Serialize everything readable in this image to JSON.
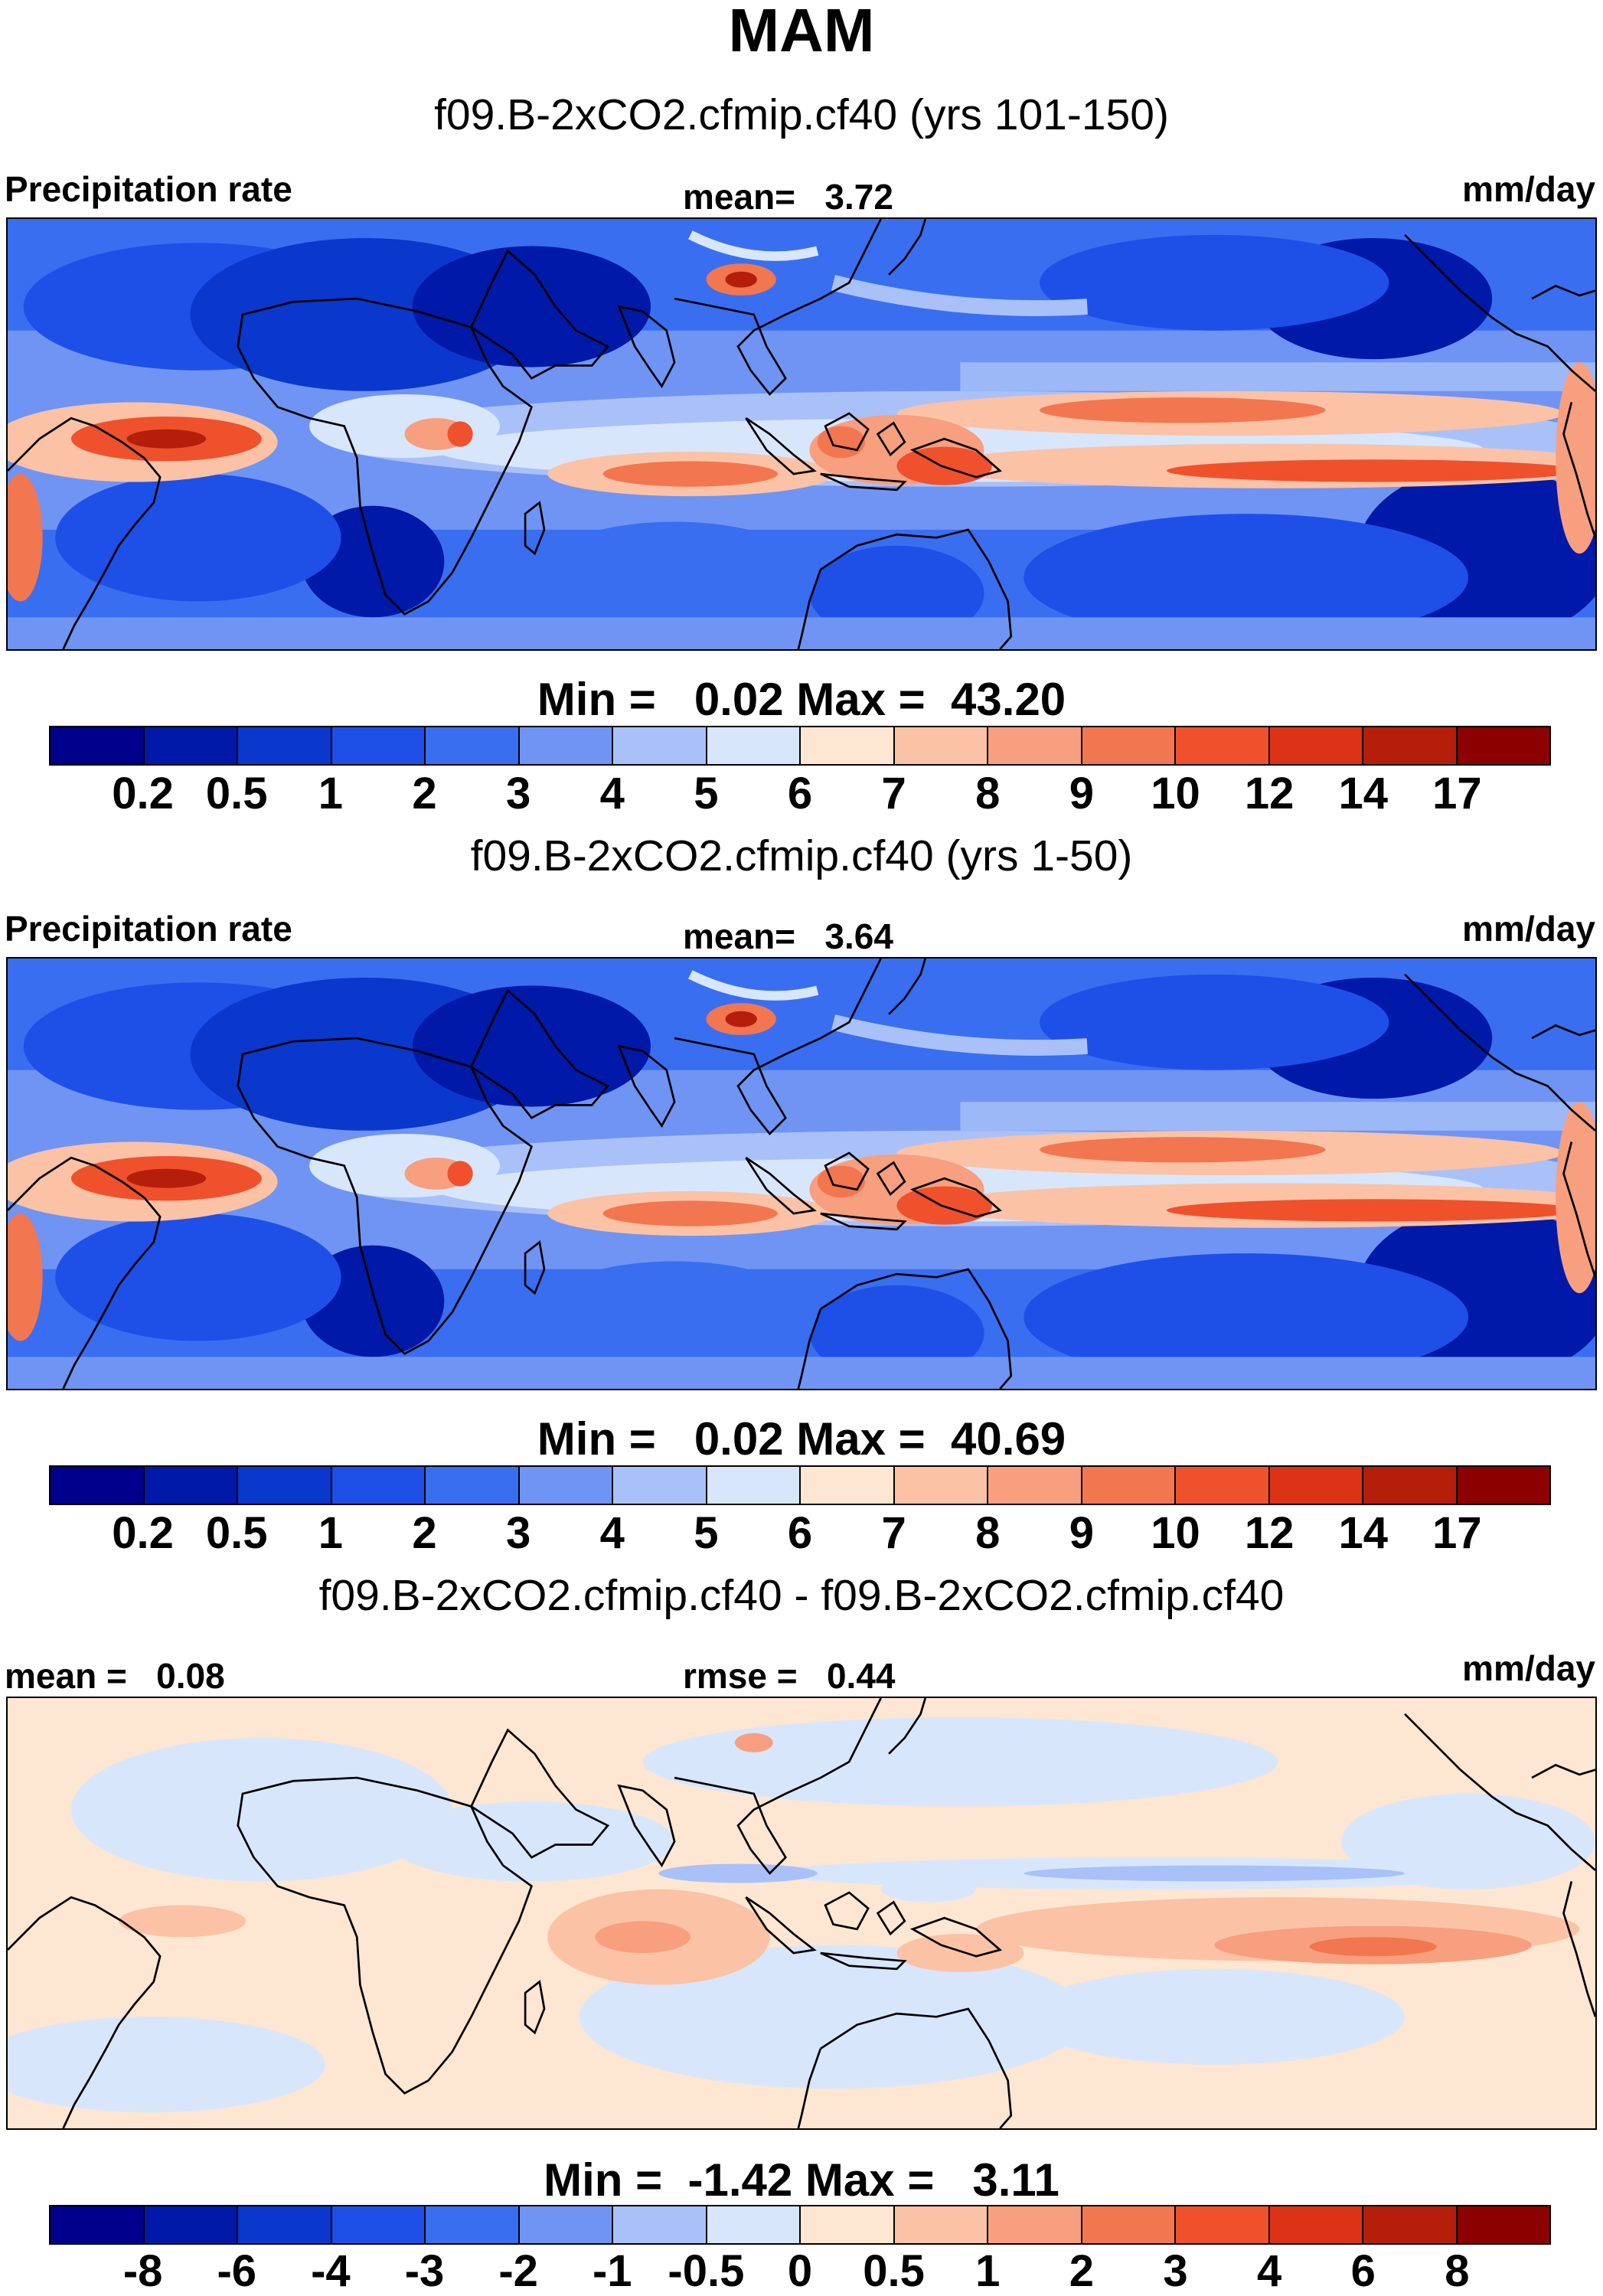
{
  "title": "MAM",
  "panels": [
    {
      "case": "f09.B-2xCO2.cfmip.cf40 (yrs 101-150)",
      "left_label": "Precipitation rate",
      "center_label": "mean=   3.72",
      "right_label": "mm/day",
      "minmax": "Min =   0.02 Max =  43.20",
      "kind": "abs"
    },
    {
      "case": "f09.B-2xCO2.cfmip.cf40 (yrs 1-50)",
      "left_label": "Precipitation rate",
      "center_label": "mean=   3.64",
      "right_label": "mm/day",
      "minmax": "Min =   0.02 Max =  40.69",
      "kind": "abs"
    },
    {
      "case": "f09.B-2xCO2.cfmip.cf40 - f09.B-2xCO2.cfmip.cf40",
      "left_label": "mean =   0.08",
      "center_label": "rmse =   0.44",
      "right_label": "mm/day",
      "minmax": "Min =  -1.42 Max =   3.11",
      "kind": "diff"
    }
  ],
  "colorbar_abs": {
    "colors": [
      "#00008c",
      "#0019a8",
      "#0a38cc",
      "#1e50e8",
      "#3a6ef0",
      "#6f94f4",
      "#a9c1f8",
      "#d8e6fc",
      "#fde6d2",
      "#fbc2a6",
      "#f79f7e",
      "#f27650",
      "#ee512c",
      "#dc3316",
      "#b41e0a",
      "#8c0000"
    ],
    "ticks": [
      "0.2",
      "0.5",
      "1",
      "2",
      "3",
      "4",
      "5",
      "6",
      "7",
      "8",
      "9",
      "10",
      "12",
      "14",
      "17"
    ]
  },
  "colorbar_diff": {
    "colors": [
      "#00008c",
      "#0019a8",
      "#0a38cc",
      "#1e50e8",
      "#3a6ef0",
      "#6f94f4",
      "#a9c1f8",
      "#d8e6fc",
      "#fde6d2",
      "#fbc2a6",
      "#f79f7e",
      "#f27650",
      "#ee512c",
      "#dc3316",
      "#b41e0a",
      "#8c0000"
    ],
    "ticks": [
      "-8",
      "-6",
      "-4",
      "-3",
      "-2",
      "-1",
      "-0.5",
      "0",
      "0.5",
      "1",
      "2",
      "3",
      "4",
      "6",
      "8"
    ]
  }
}
